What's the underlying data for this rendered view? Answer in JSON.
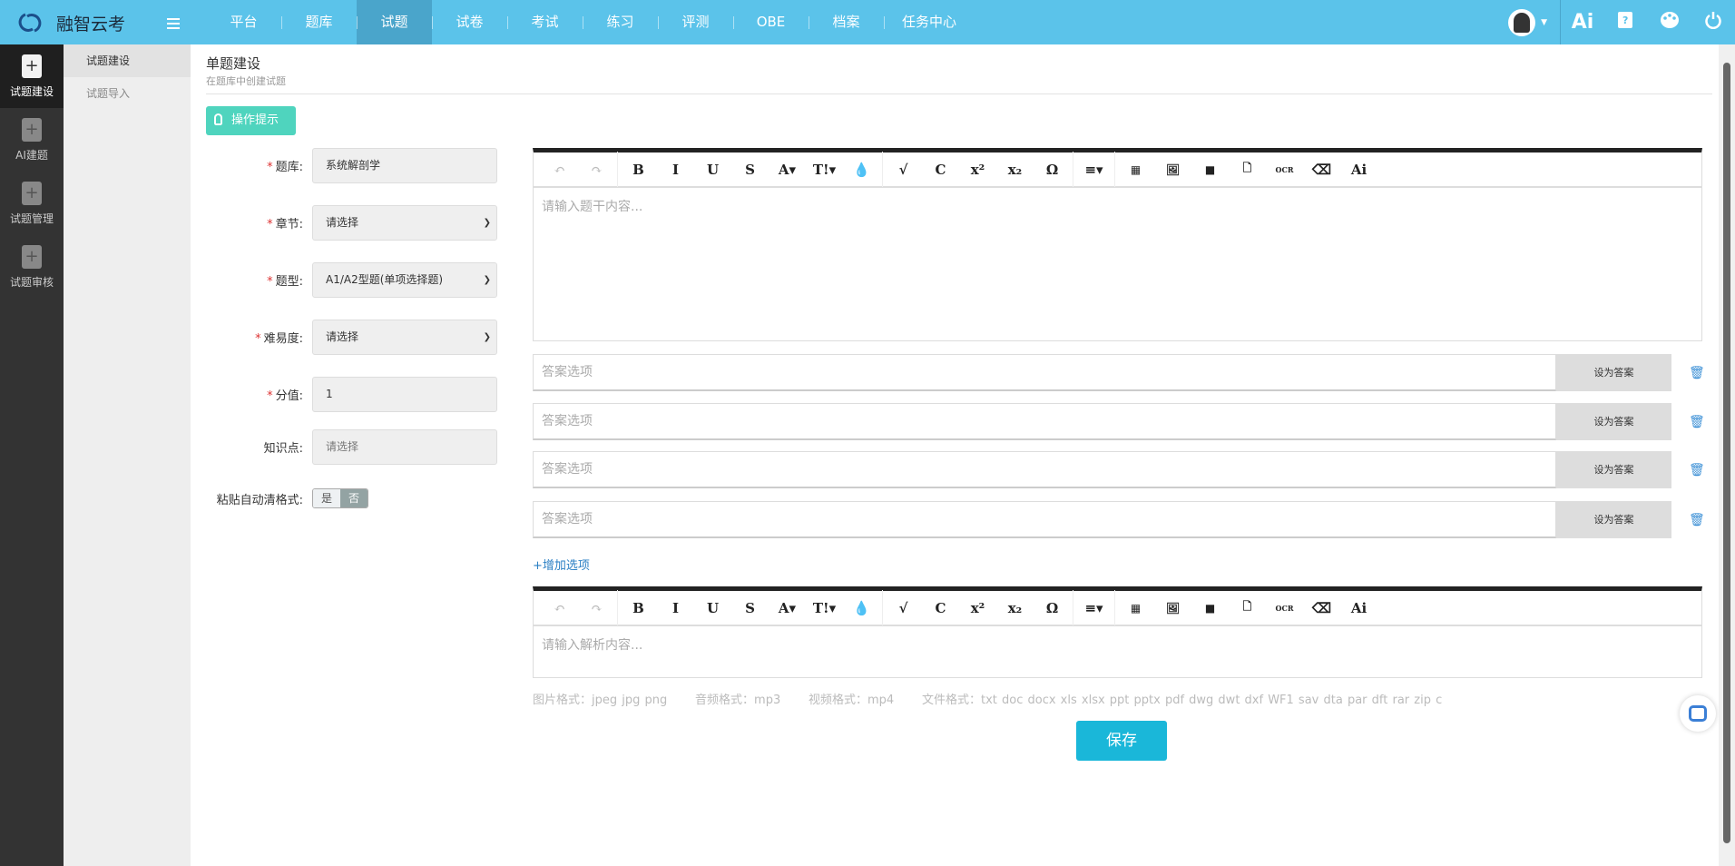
{
  "app": {
    "name": "融智云考"
  },
  "nav": [
    "平台",
    "题库",
    "试题",
    "试卷",
    "考试",
    "练习",
    "评测",
    "OBE",
    "档案",
    "任务中心"
  ],
  "nav_active": "试题",
  "topbar_right": {
    "ai_label": "Ai",
    "icons": [
      "avatar",
      "caret-down-icon",
      "ai-icon",
      "help-edit-icon",
      "palette-icon",
      "power-icon"
    ]
  },
  "sidebar": [
    {
      "label": "试题建设",
      "active": true
    },
    {
      "label": "AI建题"
    },
    {
      "label": "试题管理"
    },
    {
      "label": "试题审核"
    }
  ],
  "subsidebar": [
    {
      "label": "试题建设",
      "active": true
    },
    {
      "label": "试题导入"
    }
  ],
  "page": {
    "title": "单题建设",
    "subtitle": "在题库中创建试题",
    "tip_button": "操作提示"
  },
  "form": {
    "bank": {
      "label": "题库:",
      "value": "系统解剖学",
      "required": true
    },
    "chapter": {
      "label": "章节:",
      "value": "请选择",
      "required": true
    },
    "type": {
      "label": "题型:",
      "value": "A1/A2型题(单项选择题)",
      "required": true
    },
    "difficulty": {
      "label": "难易度:",
      "value": "请选择",
      "required": true
    },
    "score": {
      "label": "分值:",
      "value": "1",
      "required": true
    },
    "knowledge": {
      "label": "知识点:",
      "placeholder": "请选择"
    },
    "paste_clean": {
      "label": "粘贴自动清格式:",
      "yes": "是",
      "no": "否",
      "selected": "否"
    }
  },
  "editor_toolbar": [
    "↶",
    "↷",
    "B",
    "I",
    "U",
    "S",
    "A▾",
    "T!▾",
    "💧",
    "√",
    "C",
    "x²",
    "x₂",
    "Ω",
    "≡▾",
    "▦",
    "🖼",
    "■",
    "🗋",
    "OCR",
    "⌫",
    "Ai"
  ],
  "stem_placeholder": "请输入题干内容...",
  "options": [
    {
      "placeholder": "答案选项",
      "button": "设为答案"
    },
    {
      "placeholder": "答案选项",
      "button": "设为答案"
    },
    {
      "placeholder": "答案选项",
      "button": "设为答案"
    },
    {
      "placeholder": "答案选项",
      "button": "设为答案"
    }
  ],
  "add_option": "增加选项",
  "analysis_placeholder": "请输入解析内容...",
  "formats": "图片格式：jpeg jpg png      音频格式：mp3      视频格式：mp4      文件格式：txt doc docx xls xlsx ppt pptx pdf dwg dwt dxf WF1 sav dta par dft rar zip c",
  "save": "保存",
  "colors": {
    "topbar": "#5bc3ea",
    "accent": "#1ab7d9",
    "tip": "#4fd4be"
  }
}
